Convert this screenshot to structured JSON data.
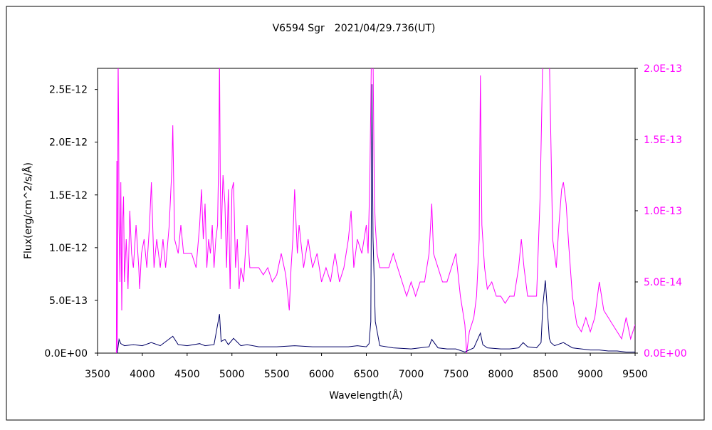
{
  "chart_data": {
    "type": "line",
    "title": "V6594 Sgr　2021/04/29.736(UT)",
    "xlabel": "Wavelength(Å)",
    "ylabel": "Flux(erg/cm^2/s/Å)",
    "xlim": [
      3500,
      9500
    ],
    "ylim_left": [
      0,
      2.7e-12
    ],
    "ylim_right": [
      0,
      2e-13
    ],
    "x_ticks": [
      "3500",
      "4000",
      "4500",
      "5000",
      "5500",
      "6000",
      "6500",
      "7000",
      "7500",
      "8000",
      "8500",
      "9000",
      "9500"
    ],
    "y_ticks_left": [
      "0.0E+00",
      "5.0E-13",
      "1.0E-12",
      "1.5E-12",
      "2.0E-12",
      "2.5E-12"
    ],
    "y_ticks_right": [
      "0.0E+00",
      "5.0E-14",
      "1.0E-13",
      "1.5E-13",
      "2.0E-13"
    ],
    "grid": false,
    "colors": {
      "left_series": "#000066",
      "right_series": "#ff00ff",
      "right_axis": "#ff00ff"
    },
    "series": [
      {
        "axis": "left",
        "x": [
          3720,
          3740,
          3760,
          3800,
          3900,
          4000,
          4100,
          4200,
          4340,
          4400,
          4500,
          4640,
          4700,
          4800,
          4861,
          4880,
          4922,
          4960,
          5018,
          5100,
          5169,
          5300,
          5500,
          5700,
          5900,
          6100,
          6300,
          6400,
          6500,
          6530,
          6550,
          6563,
          6575,
          6600,
          6650,
          6800,
          7000,
          7100,
          7200,
          7230,
          7300,
          7400,
          7500,
          7600,
          7650,
          7700,
          7773,
          7800,
          7850,
          8000,
          8100,
          8200,
          8250,
          8300,
          8400,
          8450,
          8470,
          8498,
          8542,
          8560,
          8600,
          8700,
          8800,
          9000,
          9100,
          9200,
          9300,
          9400,
          9500
        ],
        "values": [
          0,
          1.3e-13,
          9e-14,
          7e-14,
          8e-14,
          7e-14,
          1e-13,
          7e-14,
          1.6e-13,
          8e-14,
          7e-14,
          9e-14,
          7e-14,
          8e-14,
          3.7e-13,
          1.1e-13,
          1.3e-13,
          8e-14,
          1.4e-13,
          7e-14,
          8e-14,
          6e-14,
          6e-14,
          7e-14,
          6e-14,
          6e-14,
          6e-14,
          7e-14,
          6e-14,
          9e-14,
          3e-13,
          2.55e-12,
          1.1e-12,
          3e-13,
          7e-14,
          5e-14,
          4e-14,
          5e-14,
          6e-14,
          1.3e-13,
          5e-14,
          4e-14,
          4e-14,
          1e-14,
          3e-14,
          5e-14,
          1.9e-13,
          8e-14,
          5e-14,
          4e-14,
          4e-14,
          5e-14,
          1e-13,
          6e-14,
          5e-14,
          1e-13,
          4.5e-13,
          6.9e-13,
          1.4e-13,
          1e-13,
          7e-14,
          1e-13,
          5e-14,
          3e-14,
          3e-14,
          2e-14,
          2e-14,
          1e-14,
          1e-14
        ]
      },
      {
        "axis": "right",
        "x": [
          3710,
          3715,
          3720,
          3725,
          3730,
          3735,
          3740,
          3750,
          3760,
          3770,
          3780,
          3790,
          3800,
          3820,
          3840,
          3860,
          3880,
          3900,
          3930,
          3960,
          3970,
          3990,
          4020,
          4050,
          4080,
          4101,
          4130,
          4160,
          4200,
          4230,
          4260,
          4300,
          4330,
          4340,
          4360,
          4400,
          4430,
          4460,
          4500,
          4550,
          4600,
          4640,
          4660,
          4680,
          4700,
          4720,
          4740,
          4760,
          4780,
          4800,
          4820,
          4840,
          4855,
          4861,
          4870,
          4880,
          4900,
          4922,
          4940,
          4960,
          4980,
          5000,
          5018,
          5040,
          5060,
          5080,
          5100,
          5130,
          5169,
          5200,
          5250,
          5300,
          5350,
          5400,
          5450,
          5500,
          5550,
          5600,
          5640,
          5660,
          5680,
          5700,
          5730,
          5750,
          5800,
          5850,
          5900,
          5950,
          6000,
          6050,
          6100,
          6150,
          6200,
          6250,
          6300,
          6330,
          6360,
          6400,
          6450,
          6500,
          6520,
          6540,
          6555,
          6563,
          6575,
          6590,
          6600,
          6620,
          6650,
          6700,
          6750,
          6800,
          6850,
          6900,
          6950,
          7000,
          7050,
          7100,
          7150,
          7200,
          7230,
          7250,
          7300,
          7350,
          7400,
          7450,
          7500,
          7550,
          7600,
          7620,
          7650,
          7700,
          7730,
          7760,
          7773,
          7790,
          7820,
          7850,
          7900,
          7950,
          8000,
          8050,
          8100,
          8150,
          8200,
          8230,
          8260,
          8300,
          8350,
          8400,
          8440,
          8470,
          8498,
          8520,
          8542,
          8560,
          8580,
          8600,
          8620,
          8650,
          8680,
          8700,
          8730,
          8760,
          8800,
          8850,
          8900,
          8950,
          9000,
          9050,
          9100,
          9150,
          9200,
          9250,
          9300,
          9350,
          9400,
          9450,
          9500
        ],
        "values": [
          0,
          1.35e-13,
          0,
          1.1e-13,
          2.1e-13,
          1.65e-13,
          9e-14,
          5e-14,
          1.2e-13,
          3e-14,
          9e-14,
          1.1e-13,
          5e-14,
          8e-14,
          4.5e-14,
          1e-13,
          7e-14,
          6e-14,
          9e-14,
          6e-14,
          4.5e-14,
          7e-14,
          8e-14,
          6e-14,
          9e-14,
          1.2e-13,
          6e-14,
          8e-14,
          6e-14,
          8e-14,
          6e-14,
          9e-14,
          1.3e-13,
          1.6e-13,
          8e-14,
          7e-14,
          9e-14,
          7e-14,
          7e-14,
          7e-14,
          6e-14,
          9e-14,
          1.15e-13,
          8e-14,
          1.05e-13,
          6e-14,
          8e-14,
          7e-14,
          9e-14,
          6e-14,
          8e-14,
          9e-14,
          1.5e-13,
          2.1e-13,
          1.2e-13,
          8e-14,
          1.25e-13,
          1.05e-13,
          6e-14,
          1.15e-13,
          4.5e-14,
          1.15e-13,
          1.2e-13,
          6e-14,
          8e-14,
          4.5e-14,
          6e-14,
          5e-14,
          9e-14,
          6e-14,
          6e-14,
          6e-14,
          5.5e-14,
          6e-14,
          5e-14,
          5.5e-14,
          7e-14,
          5.5e-14,
          3e-14,
          6e-14,
          8e-14,
          1.15e-13,
          7e-14,
          9e-14,
          6e-14,
          8e-14,
          6e-14,
          7e-14,
          5e-14,
          6e-14,
          5e-14,
          7e-14,
          5e-14,
          6e-14,
          8e-14,
          1e-13,
          6e-14,
          8e-14,
          7e-14,
          9e-14,
          7e-14,
          1.25e-13,
          2e-13,
          2.1e-13,
          2.1e-13,
          1.1e-13,
          9e-14,
          7e-14,
          6e-14,
          6e-14,
          6e-14,
          7e-14,
          6e-14,
          5e-14,
          4e-14,
          5e-14,
          4e-14,
          5e-14,
          5e-14,
          7e-14,
          1.05e-13,
          7e-14,
          6e-14,
          5e-14,
          5e-14,
          6e-14,
          7e-14,
          4e-14,
          2e-14,
          0,
          1.5e-14,
          2.5e-14,
          4e-14,
          8e-14,
          1.95e-13,
          9e-14,
          6e-14,
          4.5e-14,
          5e-14,
          4e-14,
          4e-14,
          3.5e-14,
          4e-14,
          4e-14,
          6e-14,
          8e-14,
          6e-14,
          4e-14,
          4e-14,
          4e-14,
          1.1e-13,
          2.1e-13,
          2.1e-13,
          2.1e-13,
          2.1e-13,
          1.5e-13,
          8e-14,
          7e-14,
          6e-14,
          9e-14,
          1.15e-13,
          1.2e-13,
          1.05e-13,
          7.5e-14,
          4e-14,
          2e-14,
          1.5e-14,
          2.5e-14,
          1.5e-14,
          2.5e-14,
          5e-14,
          3e-14,
          2.5e-14,
          2e-14,
          1.5e-14,
          1e-14,
          2.5e-14,
          1e-14,
          2e-14
        ]
      }
    ]
  }
}
